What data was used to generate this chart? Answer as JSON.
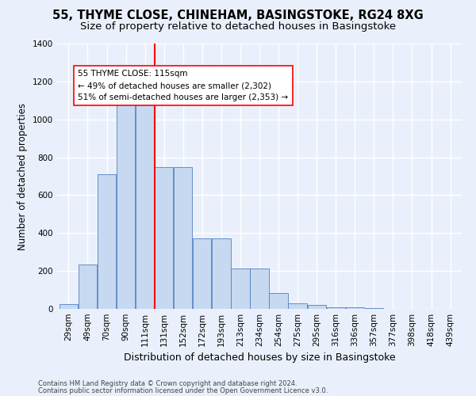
{
  "title1": "55, THYME CLOSE, CHINEHAM, BASINGSTOKE, RG24 8XG",
  "title2": "Size of property relative to detached houses in Basingstoke",
  "xlabel": "Distribution of detached houses by size in Basingstoke",
  "ylabel": "Number of detached properties",
  "footnote1": "Contains HM Land Registry data © Crown copyright and database right 2024.",
  "footnote2": "Contains public sector information licensed under the Open Government Licence v3.0.",
  "bar_labels": [
    "29sqm",
    "49sqm",
    "70sqm",
    "90sqm",
    "111sqm",
    "131sqm",
    "152sqm",
    "172sqm",
    "193sqm",
    "213sqm",
    "234sqm",
    "254sqm",
    "275sqm",
    "295sqm",
    "316sqm",
    "336sqm",
    "357sqm",
    "377sqm",
    "398sqm",
    "418sqm",
    "439sqm"
  ],
  "bar_values": [
    25,
    235,
    710,
    1090,
    1120,
    750,
    750,
    370,
    370,
    215,
    215,
    85,
    30,
    20,
    10,
    10,
    5,
    0,
    0,
    0,
    0
  ],
  "bar_color": "#c6d9f1",
  "bar_edge_color": "#5080c0",
  "vline_x": 4.5,
  "vline_color": "red",
  "property_size": 115,
  "pct_smaller": 49,
  "count_smaller": 2302,
  "pct_larger": 51,
  "count_larger": 2353,
  "annotation_box_color": "white",
  "annotation_box_edge": "red",
  "ylim": [
    0,
    1400
  ],
  "yticks": [
    0,
    200,
    400,
    600,
    800,
    1000,
    1200,
    1400
  ],
  "background_color": "#eaf0fb",
  "plot_background": "#eaf0fb",
  "grid_color": "white",
  "title1_fontsize": 10.5,
  "title2_fontsize": 9.5,
  "xlabel_fontsize": 9,
  "ylabel_fontsize": 8.5,
  "tick_fontsize": 7.5,
  "annot_fontsize": 7.5,
  "footnote_fontsize": 6.0
}
